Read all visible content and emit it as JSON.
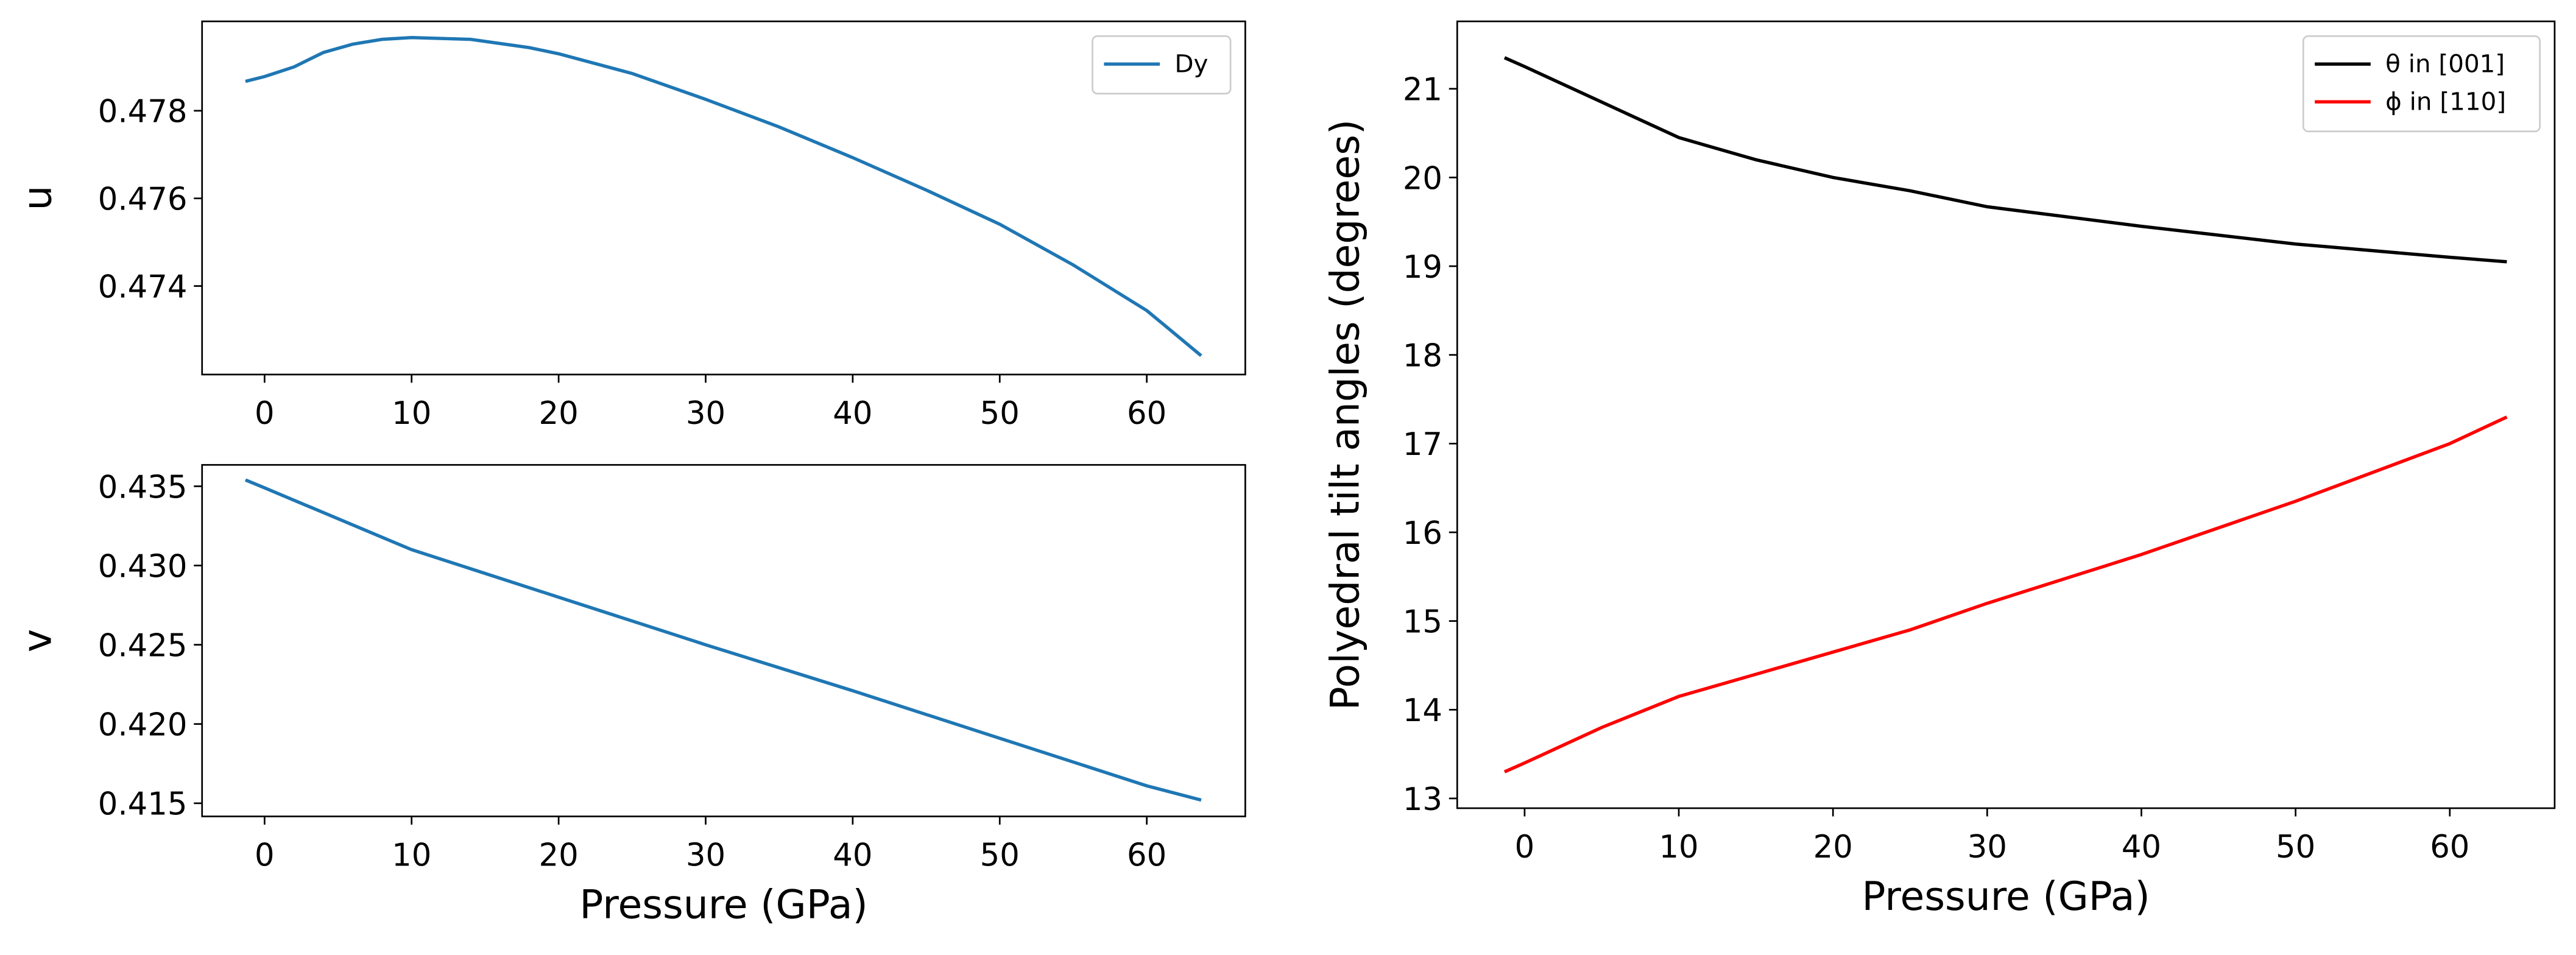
{
  "chart_data": [
    {
      "type": "line",
      "ylabel": "u",
      "x": [
        -1.3,
        0,
        2,
        4,
        6,
        8,
        10,
        14,
        18,
        20,
        25,
        30,
        35,
        40,
        45,
        50,
        55,
        60,
        63.7
      ],
      "series": [
        {
          "name": "Dy",
          "color": "#1f77b4",
          "values": [
            0.47867,
            0.47878,
            0.479,
            0.47933,
            0.47952,
            0.47963,
            0.47967,
            0.47963,
            0.47944,
            0.4793,
            0.47885,
            0.47826,
            0.47763,
            0.47693,
            0.47619,
            0.47541,
            0.47448,
            0.47344,
            0.47241
          ]
        }
      ],
      "xlim": [
        -4.25,
        66.7
      ],
      "xticks": [
        0,
        10,
        20,
        30,
        40,
        50,
        60
      ],
      "ylim": [
        0.47198,
        0.48004
      ],
      "yticks": [
        0.474,
        0.476,
        0.478
      ],
      "legend": "upper right"
    },
    {
      "type": "line",
      "xlabel": "Pressure (GPa)",
      "ylabel": "v",
      "x": [
        -1.3,
        0,
        10,
        20,
        30,
        40,
        50,
        60,
        63.7
      ],
      "series": [
        {
          "color": "#1f77b4",
          "values": [
            0.4354,
            0.4349,
            0.431,
            0.428,
            0.425,
            0.4221,
            0.4191,
            0.4161,
            0.4152
          ]
        }
      ],
      "xlim": [
        -4.25,
        66.7
      ],
      "xticks": [
        0,
        10,
        20,
        30,
        40,
        50,
        60
      ],
      "ylim": [
        0.41417,
        0.43635
      ],
      "yticks": [
        0.415,
        {
          "value": 0.42,
          "label": "0.420"
        },
        0.425,
        {
          "value": 0.43,
          "label": "0.430"
        },
        0.435
      ]
    },
    {
      "type": "line",
      "xlabel": "Pressure (GPa)",
      "ylabel": "Polyedral tilt angles (degrees)",
      "x": [
        -1.3,
        0,
        5,
        10,
        15,
        20,
        25,
        30,
        40,
        50,
        60,
        63.7
      ],
      "series": [
        {
          "name": "θ in [001]",
          "color": "#000000",
          "values": [
            21.35,
            21.25,
            20.85,
            20.45,
            20.2,
            20.0,
            19.85,
            19.67,
            19.45,
            19.25,
            19.1,
            19.05
          ]
        },
        {
          "name": "ϕ in [110]",
          "color": "#ff0000",
          "values": [
            13.3,
            13.4,
            13.8,
            14.15,
            14.4,
            14.65,
            14.9,
            15.2,
            15.75,
            16.35,
            17.0,
            17.3
          ]
        }
      ],
      "xlim": [
        -4.37,
        66.8
      ],
      "xticks": [
        0,
        10,
        20,
        30,
        40,
        50,
        60
      ],
      "ylim": [
        12.89,
        21.76
      ],
      "yticks": [
        13,
        14,
        15,
        16,
        17,
        18,
        19,
        20,
        21
      ],
      "legend": "upper right"
    }
  ]
}
